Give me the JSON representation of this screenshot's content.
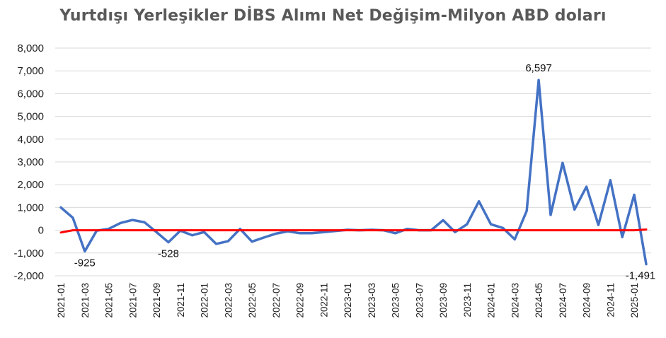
{
  "chart_data": {
    "type": "line",
    "title": "Yurtdışı Yerleşikler DİBS Alımı Net Değişim-Milyon ABD doları",
    "ylim": [
      -2000,
      8000
    ],
    "yticks": [
      "8,000",
      "7,000",
      "6,000",
      "5,000",
      "4,000",
      "3,000",
      "2,000",
      "1,000",
      "0",
      "-1,000",
      "-2,000"
    ],
    "grid": "horizontal",
    "categories": [
      "2021-01",
      "2021-02",
      "2021-03",
      "2021-04",
      "2021-05",
      "2021-06",
      "2021-07",
      "2021-08",
      "2021-09",
      "2021-10",
      "2021-11",
      "2021-12",
      "2022-01",
      "2022-02",
      "2022-03",
      "2022-04",
      "2022-05",
      "2022-06",
      "2022-07",
      "2022-08",
      "2022-09",
      "2022-10",
      "2022-11",
      "2022-12",
      "2023-01",
      "2023-02",
      "2023-03",
      "2023-04",
      "2023-05",
      "2023-06",
      "2023-07",
      "2023-08",
      "2023-09",
      "2023-10",
      "2023-11",
      "2023-12",
      "2024-01",
      "2024-02",
      "2024-03",
      "2024-04",
      "2024-05",
      "2024-06",
      "2024-07",
      "2024-08",
      "2024-09",
      "2024-10",
      "2024-11",
      "2024-12",
      "2025-01",
      "2025-02"
    ],
    "x_tick_labels": [
      "2021-01",
      "2021-03",
      "2021-05",
      "2021-07",
      "2021-09",
      "2021-11",
      "2022-01",
      "2022-03",
      "2022-05",
      "2022-07",
      "2022-09",
      "2022-11",
      "2023-01",
      "2023-03",
      "2023-05",
      "2023-07",
      "2023-09",
      "2023-11",
      "2024-01",
      "2024-03",
      "2024-05",
      "2024-07",
      "2024-09",
      "2024-11",
      "2025-01"
    ],
    "series": [
      {
        "color": "#4472C4",
        "values": [
          1000,
          550,
          -925,
          -20,
          60,
          320,
          450,
          350,
          -80,
          -528,
          -20,
          -220,
          -80,
          -600,
          -480,
          60,
          -500,
          -320,
          -150,
          -50,
          -130,
          -130,
          -80,
          -30,
          20,
          0,
          20,
          0,
          -130,
          60,
          0,
          0,
          440,
          -80,
          260,
          1270,
          260,
          100,
          -400,
          850,
          6597,
          670,
          2960,
          910,
          1910,
          230,
          2200,
          -300,
          1560,
          -1491
        ]
      },
      {
        "color": "#FF0000",
        "values": [
          -100,
          0,
          0,
          0,
          0,
          0,
          0,
          0,
          0,
          0,
          0,
          0,
          0,
          0,
          0,
          0,
          0,
          0,
          0,
          0,
          0,
          0,
          0,
          0,
          0,
          0,
          0,
          0,
          0,
          0,
          0,
          0,
          0,
          0,
          0,
          0,
          0,
          0,
          0,
          0,
          0,
          0,
          0,
          0,
          0,
          0,
          0,
          0,
          0,
          30
        ]
      }
    ],
    "annotations": [
      {
        "category": "2021-03",
        "value": -925,
        "text": "-925",
        "placement": "below"
      },
      {
        "category": "2021-10",
        "value": -528,
        "text": "-528",
        "placement": "below"
      },
      {
        "category": "2024-05",
        "value": 6597,
        "text": "6,597",
        "placement": "above"
      },
      {
        "category": "2025-02",
        "value": -1491,
        "text": "-1,491",
        "placement": "below"
      }
    ]
  }
}
